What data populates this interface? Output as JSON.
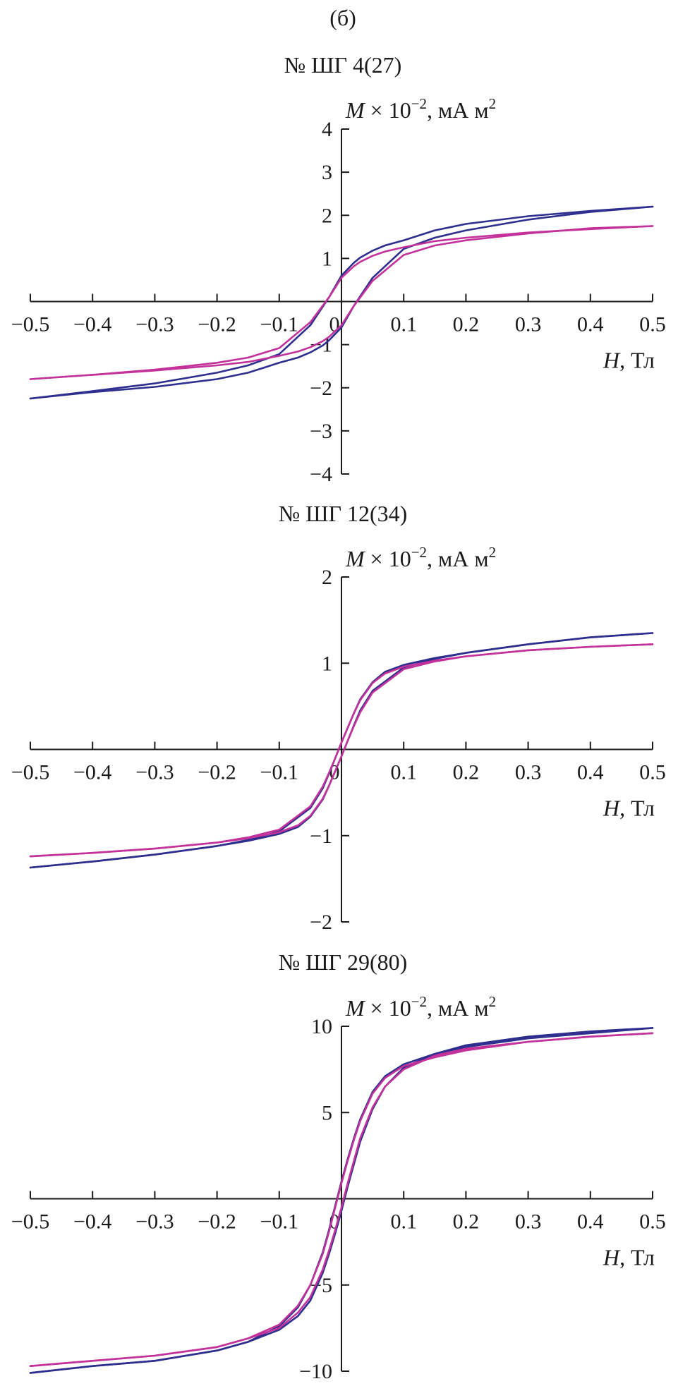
{
  "figure_label": "(б)",
  "colors": {
    "series_a": "#2e2e8f",
    "series_b": "#c2329a",
    "axis": "#1a1a1a"
  },
  "chart_data": [
    {
      "type": "line",
      "title": "№ ШГ 4(27)",
      "ylabel_var": "M",
      "ylabel_rest": " × 10",
      "ylabel_exp": "−2",
      "ylabel_unit": ", мА м",
      "ylabel_unit_exp": "2",
      "xlabel_var": "H",
      "xlabel_unit": ", Тл",
      "xlim": [
        -0.5,
        0.5
      ],
      "ylim": [
        -4,
        4
      ],
      "xticks": [
        -0.5,
        -0.4,
        -0.3,
        -0.2,
        -0.1,
        0,
        0.1,
        0.2,
        0.3,
        0.4,
        0.5
      ],
      "xtick_labels": [
        "−0.5",
        "−0.4",
        "−0.3",
        "−0.2",
        "−0.1",
        "0",
        "0.1",
        "0.2",
        "0.3",
        "0.4",
        "0.5"
      ],
      "yticks": [
        -4,
        -3,
        -2,
        -1,
        1,
        2,
        3,
        4
      ],
      "ytick_labels": [
        "−4",
        "−3",
        "−2",
        "−1",
        "1",
        "2",
        "3",
        "4"
      ],
      "series": [
        {
          "branch": "descending",
          "color": "#2e2e8f",
          "x": [
            0.5,
            0.4,
            0.3,
            0.2,
            0.15,
            0.1,
            0.07,
            0.05,
            0.03,
            0.02,
            0.0,
            -0.02,
            -0.05,
            -0.1,
            -0.15,
            -0.2,
            -0.3,
            -0.4,
            -0.5
          ],
          "y": [
            2.2,
            2.1,
            1.98,
            1.8,
            1.65,
            1.42,
            1.3,
            1.18,
            1.02,
            0.9,
            0.6,
            0.1,
            -0.55,
            -1.22,
            -1.48,
            -1.65,
            -1.9,
            -2.08,
            -2.25
          ]
        },
        {
          "branch": "ascending",
          "color": "#2e2e8f",
          "x": [
            -0.5,
            -0.4,
            -0.3,
            -0.2,
            -0.15,
            -0.1,
            -0.07,
            -0.05,
            -0.03,
            -0.02,
            0.0,
            0.02,
            0.05,
            0.1,
            0.15,
            0.2,
            0.3,
            0.4,
            0.5
          ],
          "y": [
            -2.25,
            -2.1,
            -1.98,
            -1.8,
            -1.65,
            -1.42,
            -1.3,
            -1.18,
            -1.02,
            -0.9,
            -0.6,
            -0.1,
            0.55,
            1.22,
            1.48,
            1.65,
            1.9,
            2.08,
            2.2
          ]
        },
        {
          "branch": "descending",
          "color": "#c2329a",
          "x": [
            0.5,
            0.4,
            0.3,
            0.2,
            0.15,
            0.1,
            0.07,
            0.05,
            0.03,
            0.02,
            0.0,
            -0.02,
            -0.05,
            -0.1,
            -0.15,
            -0.2,
            -0.3,
            -0.4,
            -0.5
          ],
          "y": [
            1.75,
            1.68,
            1.6,
            1.48,
            1.4,
            1.26,
            1.16,
            1.06,
            0.92,
            0.82,
            0.55,
            0.1,
            -0.48,
            -1.08,
            -1.3,
            -1.42,
            -1.58,
            -1.7,
            -1.8
          ]
        },
        {
          "branch": "ascending",
          "color": "#c2329a",
          "x": [
            -0.5,
            -0.4,
            -0.3,
            -0.2,
            -0.15,
            -0.1,
            -0.07,
            -0.05,
            -0.03,
            -0.02,
            0.0,
            0.02,
            0.05,
            0.1,
            0.15,
            0.2,
            0.3,
            0.4,
            0.5
          ],
          "y": [
            -1.8,
            -1.7,
            -1.6,
            -1.48,
            -1.4,
            -1.26,
            -1.16,
            -1.06,
            -0.92,
            -0.82,
            -0.55,
            -0.1,
            0.48,
            1.08,
            1.3,
            1.42,
            1.58,
            1.7,
            1.75
          ]
        }
      ]
    },
    {
      "type": "line",
      "title": "№ ШГ 12(34)",
      "ylabel_var": "M",
      "ylabel_rest": " × 10",
      "ylabel_exp": "−2",
      "ylabel_unit": ", мА м",
      "ylabel_unit_exp": "2",
      "xlabel_var": "H",
      "xlabel_unit": ", Тл",
      "xlim": [
        -0.5,
        0.5
      ],
      "ylim": [
        -2,
        2
      ],
      "xticks": [
        -0.5,
        -0.4,
        -0.3,
        -0.2,
        -0.1,
        0,
        0.1,
        0.2,
        0.3,
        0.4,
        0.5
      ],
      "xtick_labels": [
        "−0.5",
        "−0.4",
        "−0.3",
        "−0.2",
        "−0.1",
        "0",
        "0.1",
        "0.2",
        "0.3",
        "0.4",
        "0.5"
      ],
      "yticks": [
        -2,
        -1,
        1,
        2
      ],
      "ytick_labels": [
        "−2",
        "−1",
        "1",
        "2"
      ],
      "series": [
        {
          "branch": "descending",
          "color": "#2e2e8f",
          "x": [
            0.5,
            0.4,
            0.3,
            0.2,
            0.15,
            0.1,
            0.07,
            0.05,
            0.03,
            0.02,
            0.01,
            0.0,
            -0.01,
            -0.02,
            -0.03,
            -0.05,
            -0.1,
            -0.15,
            -0.2,
            -0.3,
            -0.4,
            -0.5
          ],
          "y": [
            1.35,
            1.3,
            1.22,
            1.12,
            1.06,
            0.98,
            0.9,
            0.78,
            0.58,
            0.42,
            0.25,
            0.08,
            -0.1,
            -0.28,
            -0.45,
            -0.68,
            -0.95,
            -1.05,
            -1.12,
            -1.22,
            -1.3,
            -1.37
          ]
        },
        {
          "branch": "ascending",
          "color": "#2e2e8f",
          "x": [
            -0.5,
            -0.4,
            -0.3,
            -0.2,
            -0.15,
            -0.1,
            -0.07,
            -0.05,
            -0.03,
            -0.02,
            -0.01,
            0.0,
            0.01,
            0.02,
            0.03,
            0.05,
            0.1,
            0.15,
            0.2,
            0.3,
            0.4,
            0.5
          ],
          "y": [
            -1.37,
            -1.3,
            -1.22,
            -1.12,
            -1.06,
            -0.98,
            -0.9,
            -0.78,
            -0.58,
            -0.42,
            -0.25,
            -0.08,
            0.1,
            0.28,
            0.45,
            0.68,
            0.95,
            1.05,
            1.12,
            1.22,
            1.3,
            1.35
          ]
        },
        {
          "branch": "descending",
          "color": "#c2329a",
          "x": [
            0.5,
            0.4,
            0.3,
            0.2,
            0.15,
            0.1,
            0.07,
            0.05,
            0.03,
            0.02,
            0.01,
            0.0,
            -0.01,
            -0.02,
            -0.03,
            -0.05,
            -0.1,
            -0.15,
            -0.2,
            -0.3,
            -0.4,
            -0.5
          ],
          "y": [
            1.22,
            1.19,
            1.15,
            1.08,
            1.03,
            0.96,
            0.88,
            0.77,
            0.57,
            0.42,
            0.25,
            0.08,
            -0.1,
            -0.27,
            -0.43,
            -0.66,
            -0.93,
            -1.02,
            -1.08,
            -1.15,
            -1.2,
            -1.24
          ]
        },
        {
          "branch": "ascending",
          "color": "#c2329a",
          "x": [
            -0.5,
            -0.4,
            -0.3,
            -0.2,
            -0.15,
            -0.1,
            -0.07,
            -0.05,
            -0.03,
            -0.02,
            -0.01,
            0.0,
            0.01,
            0.02,
            0.03,
            0.05,
            0.1,
            0.15,
            0.2,
            0.3,
            0.4,
            0.5
          ],
          "y": [
            -1.24,
            -1.2,
            -1.15,
            -1.08,
            -1.03,
            -0.96,
            -0.88,
            -0.77,
            -0.57,
            -0.42,
            -0.25,
            -0.08,
            0.1,
            0.27,
            0.43,
            0.66,
            0.93,
            1.02,
            1.08,
            1.15,
            1.19,
            1.22
          ]
        }
      ]
    },
    {
      "type": "line",
      "title": "№ ШГ 29(80)",
      "ylabel_var": "M",
      "ylabel_rest": " × 10",
      "ylabel_exp": "−2",
      "ylabel_unit": ", мА м",
      "ylabel_unit_exp": "2",
      "xlabel_var": "H",
      "xlabel_unit": ", Тл",
      "xlim": [
        -0.5,
        0.5
      ],
      "ylim": [
        -10,
        10
      ],
      "xticks": [
        -0.5,
        -0.4,
        -0.3,
        -0.2,
        -0.1,
        0,
        0.1,
        0.2,
        0.3,
        0.4,
        0.5
      ],
      "xtick_labels": [
        "−0.5",
        "−0.4",
        "−0.3",
        "−0.2",
        "−0.1",
        "0",
        "0.1",
        "0.2",
        "0.3",
        "0.4",
        "0.5"
      ],
      "yticks": [
        -10,
        -5,
        5,
        10
      ],
      "ytick_labels": [
        "−10",
        "−5",
        "5",
        "10"
      ],
      "series": [
        {
          "branch": "descending",
          "color": "#2e2e8f",
          "x": [
            0.5,
            0.4,
            0.3,
            0.2,
            0.15,
            0.1,
            0.07,
            0.05,
            0.03,
            0.02,
            0.01,
            0.0,
            -0.01,
            -0.02,
            -0.03,
            -0.05,
            -0.07,
            -0.1,
            -0.15,
            -0.2,
            -0.3,
            -0.4,
            -0.5
          ],
          "y": [
            9.9,
            9.6,
            9.3,
            8.8,
            8.4,
            7.8,
            7.1,
            6.2,
            4.6,
            3.5,
            2.3,
            1.0,
            -0.4,
            -1.8,
            -3.1,
            -5.0,
            -6.3,
            -7.4,
            -8.3,
            -8.8,
            -9.4,
            -9.7,
            -10.1
          ]
        },
        {
          "branch": "ascending",
          "color": "#2e2e8f",
          "x": [
            -0.5,
            -0.4,
            -0.3,
            -0.2,
            -0.15,
            -0.1,
            -0.07,
            -0.05,
            -0.03,
            -0.02,
            -0.01,
            0.0,
            0.01,
            0.02,
            0.03,
            0.05,
            0.07,
            0.1,
            0.15,
            0.2,
            0.3,
            0.4,
            0.5
          ],
          "y": [
            -10.1,
            -9.7,
            -9.4,
            -8.8,
            -8.3,
            -7.6,
            -6.8,
            -5.9,
            -4.3,
            -3.2,
            -2.0,
            -0.7,
            0.7,
            2.0,
            3.3,
            5.2,
            6.5,
            7.6,
            8.4,
            8.9,
            9.4,
            9.7,
            9.9
          ]
        },
        {
          "branch": "descending",
          "color": "#c2329a",
          "x": [
            0.5,
            0.4,
            0.3,
            0.2,
            0.15,
            0.1,
            0.07,
            0.05,
            0.03,
            0.02,
            0.01,
            0.0,
            -0.01,
            -0.02,
            -0.03,
            -0.05,
            -0.07,
            -0.1,
            -0.15,
            -0.2,
            -0.3,
            -0.4,
            -0.5
          ],
          "y": [
            9.6,
            9.4,
            9.1,
            8.6,
            8.2,
            7.7,
            7.0,
            6.1,
            4.5,
            3.4,
            2.2,
            0.9,
            -0.5,
            -1.9,
            -3.2,
            -5.0,
            -6.2,
            -7.3,
            -8.1,
            -8.6,
            -9.1,
            -9.4,
            -9.7
          ]
        },
        {
          "branch": "ascending",
          "color": "#c2329a",
          "x": [
            -0.5,
            -0.4,
            -0.3,
            -0.2,
            -0.15,
            -0.1,
            -0.07,
            -0.05,
            -0.03,
            -0.02,
            -0.01,
            0.0,
            0.01,
            0.02,
            0.03,
            0.05,
            0.07,
            0.1,
            0.15,
            0.2,
            0.3,
            0.4,
            0.5
          ],
          "y": [
            -9.7,
            -9.4,
            -9.1,
            -8.6,
            -8.1,
            -7.5,
            -6.6,
            -5.7,
            -4.1,
            -3.0,
            -1.8,
            -0.5,
            0.9,
            2.2,
            3.5,
            5.3,
            6.5,
            7.5,
            8.3,
            8.7,
            9.1,
            9.4,
            9.6
          ]
        }
      ]
    }
  ]
}
